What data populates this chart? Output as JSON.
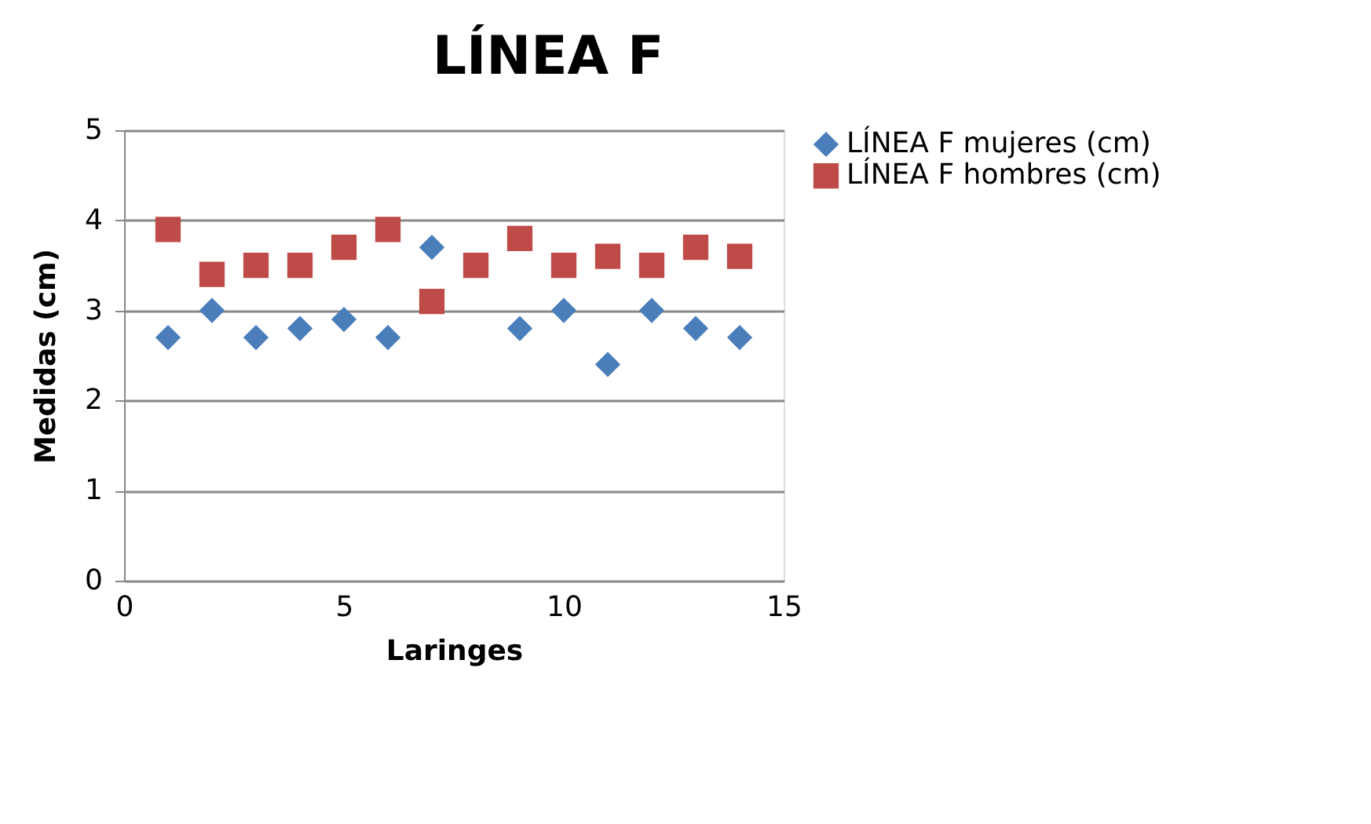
{
  "chart_data": {
    "type": "scatter",
    "title": "LÍNEA F",
    "xlabel": "Laringes",
    "ylabel": "Medidas (cm)",
    "xlim": [
      0,
      15
    ],
    "xticks": [
      0,
      5,
      10,
      15
    ],
    "ylim": [
      0,
      5
    ],
    "yticks": [
      0,
      1,
      2,
      3,
      4,
      5
    ],
    "grid": "y",
    "legend": "right",
    "series": [
      {
        "name": "LÍNEA F mujeres (cm)",
        "color": "#4a7ebb",
        "marker": "diamond",
        "x": [
          1,
          2,
          3,
          4,
          5,
          6,
          7,
          9,
          10,
          11,
          12,
          13,
          14
        ],
        "values": [
          2.7,
          3.0,
          2.7,
          2.8,
          2.9,
          2.7,
          3.7,
          2.8,
          3.0,
          2.4,
          3.0,
          2.8,
          2.7
        ]
      },
      {
        "name": "LÍNEA F hombres (cm)",
        "color": "#be4b48",
        "marker": "square",
        "x": [
          1,
          2,
          3,
          4,
          5,
          6,
          7,
          8,
          9,
          10,
          11,
          12,
          13,
          14
        ],
        "values": [
          3.9,
          3.4,
          3.5,
          3.5,
          3.7,
          3.9,
          3.1,
          3.5,
          3.8,
          3.5,
          3.6,
          3.5,
          3.7,
          3.6
        ]
      }
    ]
  }
}
